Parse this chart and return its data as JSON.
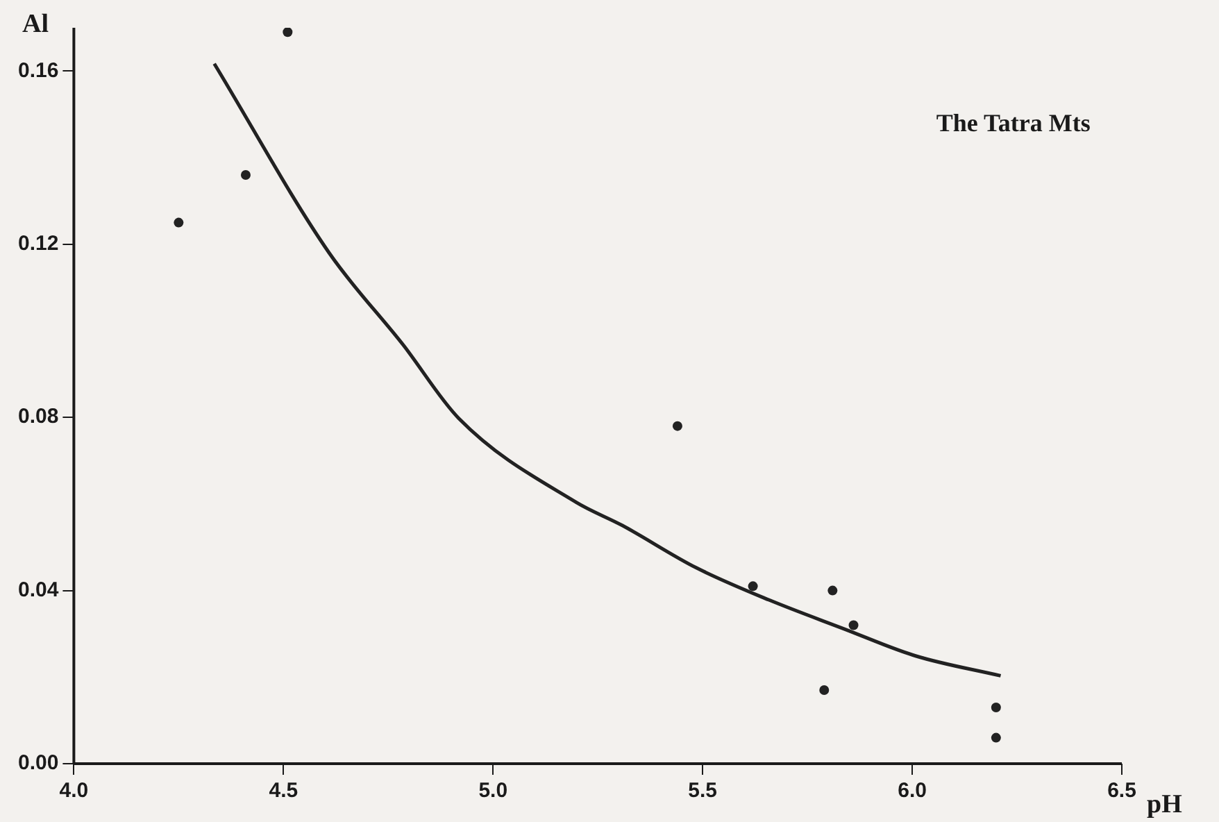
{
  "chart_data": {
    "type": "scatter",
    "title": "The Tatra Mts",
    "xlabel": "pH",
    "ylabel": "Al",
    "xlim": [
      4.0,
      6.5
    ],
    "ylim": [
      0,
      0.17
    ],
    "xticks": [
      {
        "value": 4,
        "label": "4.0"
      },
      {
        "value": 4.5,
        "label": "4.5"
      },
      {
        "value": 5,
        "label": "5.0"
      },
      {
        "value": 5.5,
        "label": "5.5"
      },
      {
        "value": 6,
        "label": "6.0"
      },
      {
        "value": 6.5,
        "label": "6.5"
      }
    ],
    "yticks": [
      {
        "value": 0,
        "label": "0.00"
      },
      {
        "value": 0.04,
        "label": "0.04"
      },
      {
        "value": 0.08,
        "label": "0.08"
      },
      {
        "value": 0.12,
        "label": "0.12"
      },
      {
        "value": 0.16,
        "label": "0.16"
      }
    ],
    "grid": false,
    "legend": false,
    "marker": "circle",
    "series": [
      {
        "type": "scatter",
        "color": "#222222",
        "x": [
          4.25,
          4.41,
          4.51,
          5.44,
          5.62,
          5.81,
          5.86,
          5.79,
          6.2,
          6.2
        ],
        "values": [
          0.125,
          0.136,
          0.169,
          0.078,
          0.041,
          0.04,
          0.032,
          0.017,
          0.013,
          0.006
        ]
      },
      {
        "type": "line",
        "color": "#222222",
        "marker": "none",
        "line_style": "solid",
        "x": [
          4.335,
          4.609,
          4.786,
          4.918,
          5.198,
          5.309,
          5.484,
          5.659,
          5.833,
          6.008,
          6.211
        ],
        "values": [
          0.1617,
          0.118,
          0.0967,
          0.0798,
          0.0604,
          0.055,
          0.0453,
          0.0378,
          0.0313,
          0.0249,
          0.0203
        ]
      }
    ]
  }
}
